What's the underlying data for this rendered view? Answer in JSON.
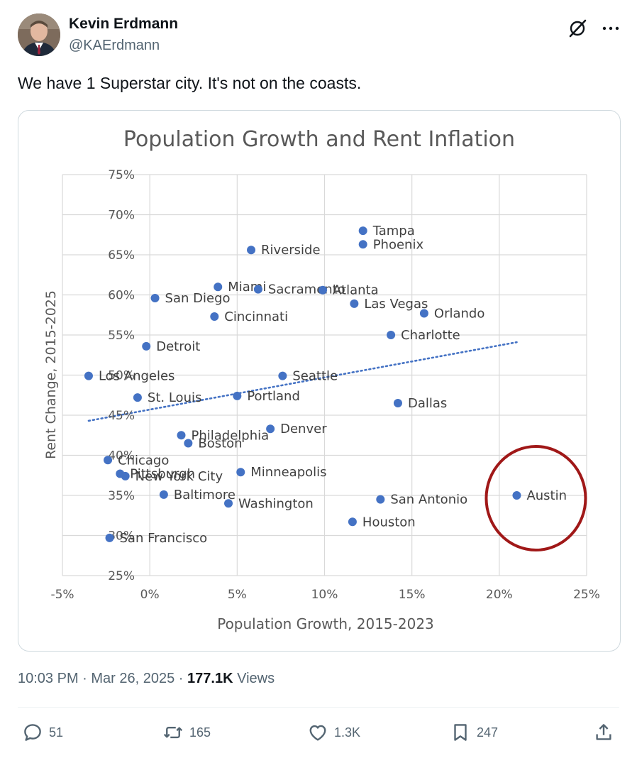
{
  "author": {
    "name": "Kevin Erdmann",
    "handle": "@KAErdmann"
  },
  "tweet": {
    "text": "We have 1 Superstar city. It's not on the coasts."
  },
  "meta": {
    "time": "10:03 PM",
    "date": "Mar 26, 2025",
    "separator": " · ",
    "views_count": "177.1K",
    "views_label": " Views"
  },
  "actions": {
    "replies": "51",
    "reposts": "165",
    "likes": "1.3K",
    "bookmarks": "247"
  },
  "icons": {
    "grok": "grok-icon",
    "more": "more-icon",
    "reply": "reply-icon",
    "repost": "repost-icon",
    "like": "heart-icon",
    "bookmark": "bookmark-icon",
    "share": "share-icon"
  },
  "colors": {
    "point": "#4472c4",
    "trendline": "#4472c4",
    "circle": "#a01818",
    "text_secondary": "#536471"
  },
  "chart_data": {
    "type": "scatter",
    "title": "Population Growth and Rent Inflation",
    "xlabel": "Population Growth, 2015-2023",
    "ylabel": "Rent Change, 2015-2025",
    "xlim": [
      -5,
      25
    ],
    "ylim": [
      25,
      75
    ],
    "x_ticks": [
      -5,
      0,
      5,
      10,
      15,
      20,
      25
    ],
    "y_ticks": [
      25,
      30,
      35,
      40,
      45,
      50,
      55,
      60,
      65,
      70,
      75
    ],
    "x_tick_labels": [
      "-5%",
      "0%",
      "5%",
      "10%",
      "15%",
      "20%",
      "25%"
    ],
    "y_tick_labels": [
      "25%",
      "30%",
      "35%",
      "40%",
      "45%",
      "50%",
      "55%",
      "60%",
      "65%",
      "70%",
      "75%"
    ],
    "grid": true,
    "trendline": {
      "style": "dotted",
      "x": [
        -3.5,
        21
      ],
      "y": [
        44.3,
        54.1
      ]
    },
    "highlight": {
      "label": "Austin",
      "shape": "circle"
    },
    "points": [
      {
        "label": "Tampa",
        "x": 12.2,
        "y": 68.0
      },
      {
        "label": "Phoenix",
        "x": 12.2,
        "y": 66.3
      },
      {
        "label": "Riverside",
        "x": 5.8,
        "y": 65.6
      },
      {
        "label": "Miami",
        "x": 3.9,
        "y": 61.0
      },
      {
        "label": "Sacramento",
        "x": 6.2,
        "y": 60.7
      },
      {
        "label": "Atlanta",
        "x": 9.9,
        "y": 60.6
      },
      {
        "label": "San Diego",
        "x": 0.3,
        "y": 59.6
      },
      {
        "label": "Las Vegas",
        "x": 11.7,
        "y": 58.9
      },
      {
        "label": "Orlando",
        "x": 15.7,
        "y": 57.7
      },
      {
        "label": "Cincinnati",
        "x": 3.7,
        "y": 57.3
      },
      {
        "label": "Charlotte",
        "x": 13.8,
        "y": 55.0
      },
      {
        "label": "Detroit",
        "x": -0.2,
        "y": 53.6
      },
      {
        "label": "Los Angeles",
        "x": -3.5,
        "y": 49.9
      },
      {
        "label": "Seattle",
        "x": 7.6,
        "y": 49.9
      },
      {
        "label": "St. Louis",
        "x": -0.7,
        "y": 47.2
      },
      {
        "label": "Portland",
        "x": 5.0,
        "y": 47.4
      },
      {
        "label": "Dallas",
        "x": 14.2,
        "y": 46.5
      },
      {
        "label": "Denver",
        "x": 6.9,
        "y": 43.3
      },
      {
        "label": "Philadelphia",
        "x": 1.8,
        "y": 42.5
      },
      {
        "label": "Boston",
        "x": 2.2,
        "y": 41.5
      },
      {
        "label": "Chicago",
        "x": -2.4,
        "y": 39.4
      },
      {
        "label": "Pittsburgh",
        "x": -1.7,
        "y": 37.7
      },
      {
        "label": "New York City",
        "x": -1.4,
        "y": 37.4
      },
      {
        "label": "Minneapolis",
        "x": 5.2,
        "y": 37.9
      },
      {
        "label": "Baltimore",
        "x": 0.8,
        "y": 35.1
      },
      {
        "label": "Washington",
        "x": 4.5,
        "y": 34.0
      },
      {
        "label": "San Antonio",
        "x": 13.2,
        "y": 34.5
      },
      {
        "label": "Austin",
        "x": 21.0,
        "y": 35.0
      },
      {
        "label": "Houston",
        "x": 11.6,
        "y": 31.7
      },
      {
        "label": "San Francisco",
        "x": -2.3,
        "y": 29.7
      }
    ]
  }
}
